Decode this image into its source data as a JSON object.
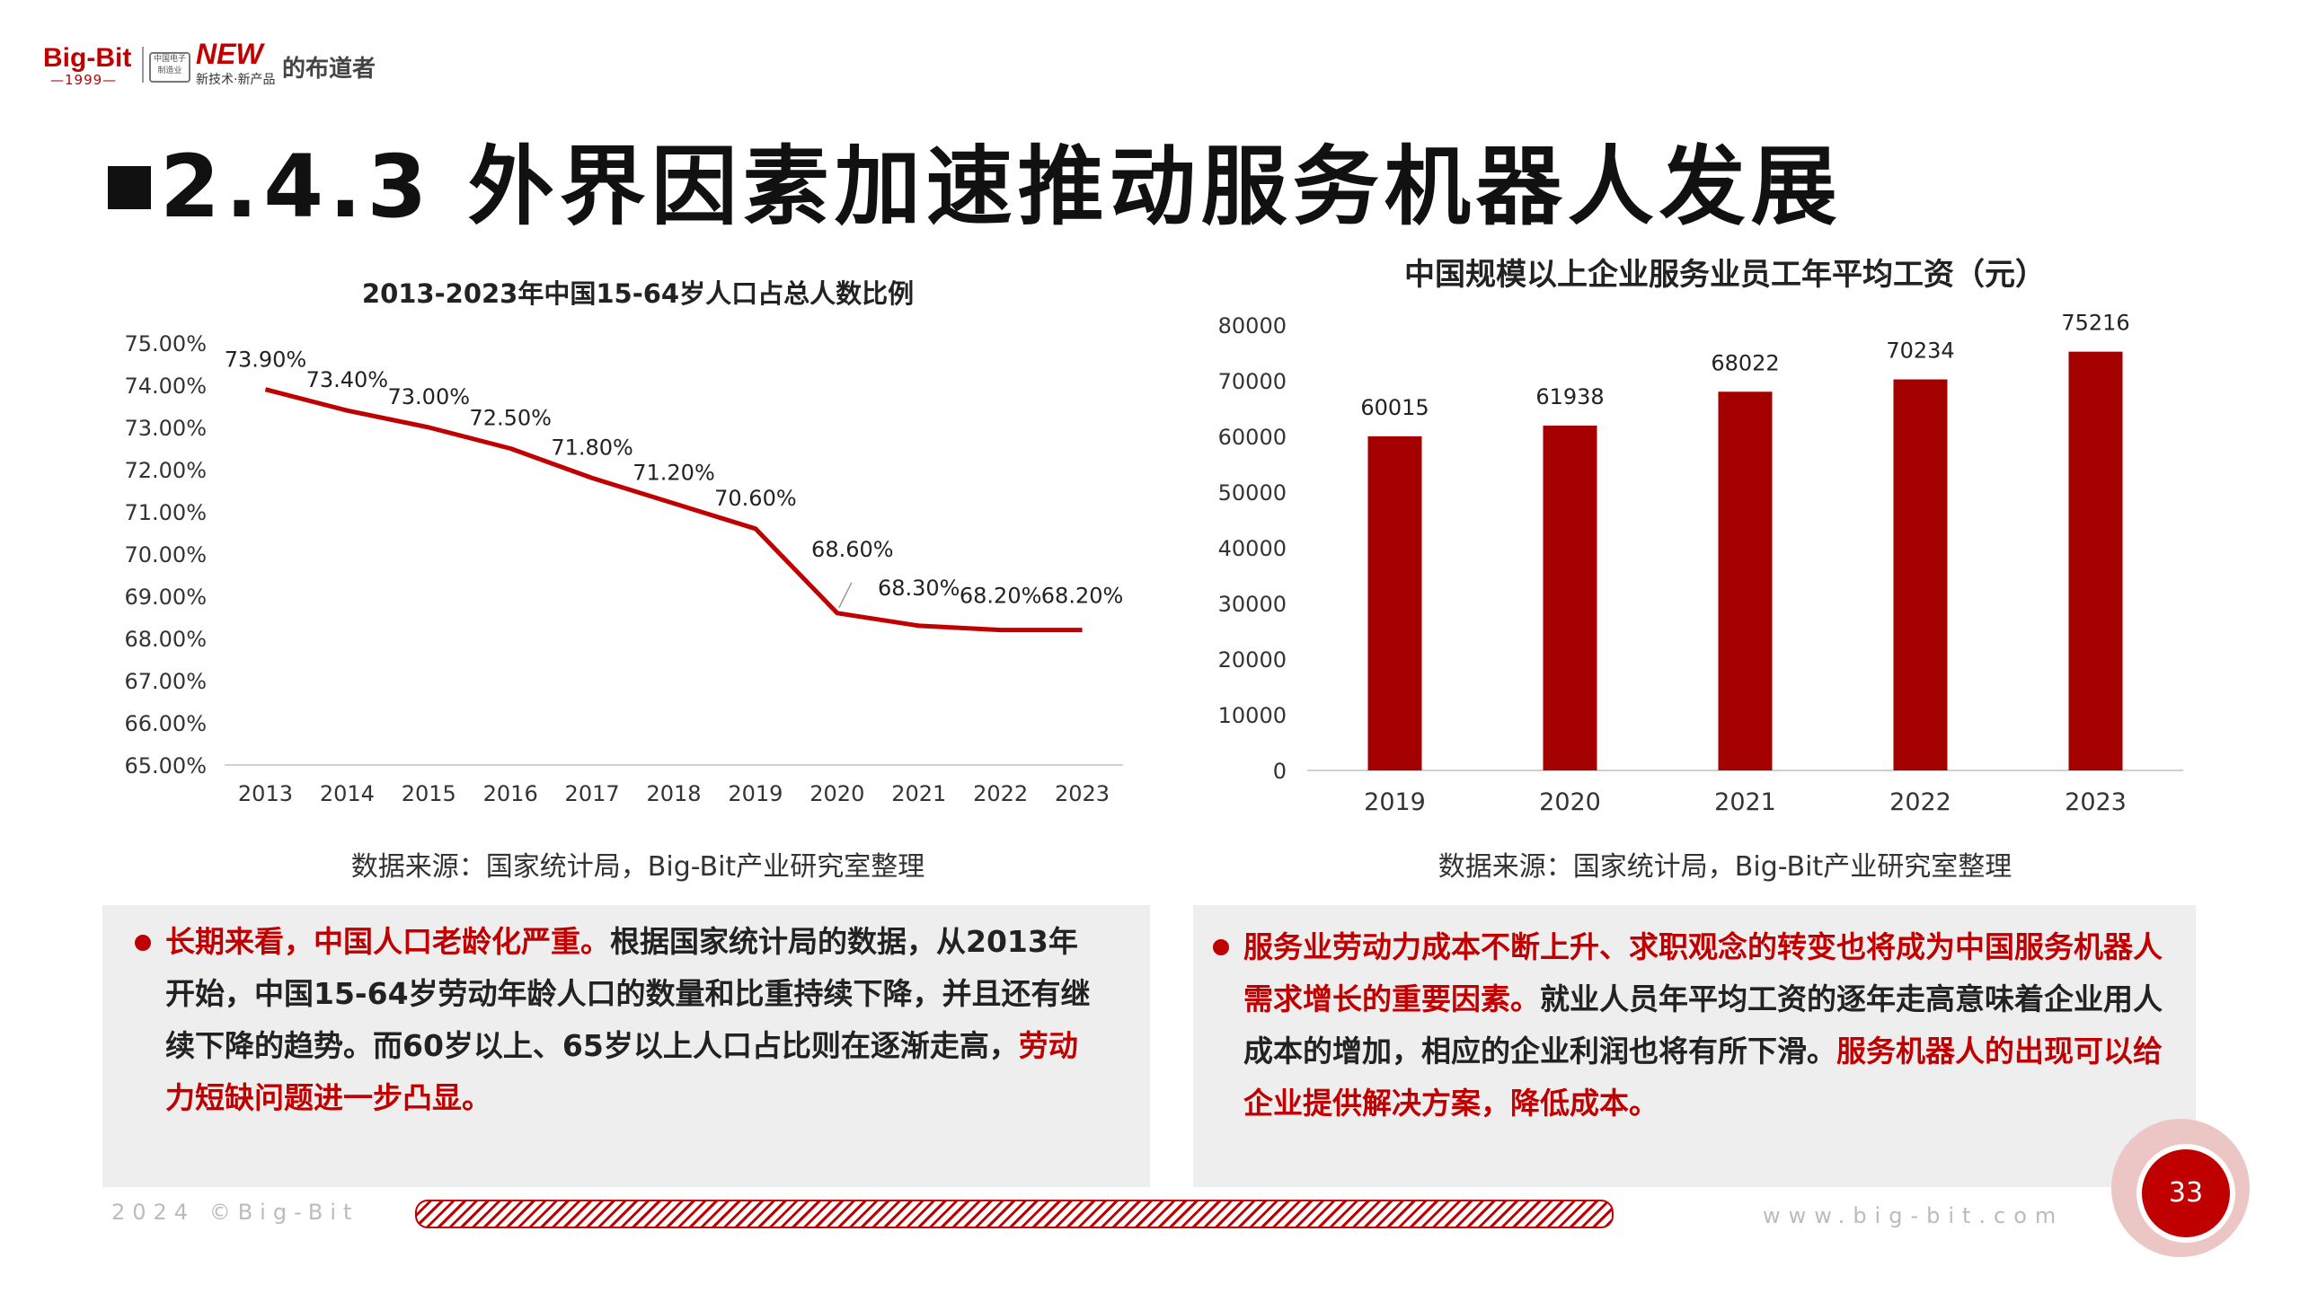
{
  "logo": {
    "brand": "Big-Bit",
    "year": "—1999—",
    "badge": "中国电子制造业",
    "new": "NEW",
    "new_sub": "新技术·新产品",
    "slogan": "的布道者"
  },
  "title": "2.4.3 外界因素加速推动服务机器人发展",
  "left_chart": {
    "title": "2013-2023年中国15-64岁人口占总人数比例",
    "source": "数据来源：国家统计局，Big-Bit产业研究室整理"
  },
  "right_chart": {
    "title": "中国规模以上企业服务业员工年平均工资（元）",
    "source": "数据来源：国家统计局，Big-Bit产业研究室整理"
  },
  "chart_data": [
    {
      "type": "line",
      "title": "2013-2023年中国15-64岁人口占总人数比例",
      "x": [
        "2013",
        "2014",
        "2015",
        "2016",
        "2017",
        "2018",
        "2019",
        "2020",
        "2021",
        "2022",
        "2023"
      ],
      "values": [
        73.9,
        73.4,
        73.0,
        72.5,
        71.8,
        71.2,
        70.6,
        68.6,
        68.3,
        68.2,
        68.2
      ],
      "value_labels": [
        "73.90%",
        "73.40%",
        "73.00%",
        "72.50%",
        "71.80%",
        "71.20%",
        "70.60%",
        "68.60%",
        "68.30%",
        "68.20%",
        "68.20%"
      ],
      "ylim": [
        65,
        75
      ],
      "yticks": [
        "65.00%",
        "66.00%",
        "67.00%",
        "68.00%",
        "69.00%",
        "70.00%",
        "71.00%",
        "72.00%",
        "73.00%",
        "74.00%",
        "75.00%"
      ],
      "color": "#c00000",
      "xlabel": "",
      "ylabel": ""
    },
    {
      "type": "bar",
      "title": "中国规模以上企业服务业员工年平均工资（元）",
      "categories": [
        "2019",
        "2020",
        "2021",
        "2022",
        "2023"
      ],
      "values": [
        60015,
        61938,
        68022,
        70234,
        75216
      ],
      "ylim": [
        0,
        80000
      ],
      "yticks": [
        "0",
        "10000",
        "20000",
        "30000",
        "40000",
        "50000",
        "60000",
        "70000",
        "80000"
      ],
      "color": "#a50000",
      "xlabel": "",
      "ylabel": ""
    }
  ],
  "left_box": {
    "line1_red": "长期来看，中国人口老龄化严重。",
    "line1_black": "根据国家统计局的数据，从2013年",
    "line2": "开始，中国15-64岁劳动年龄人口的数量和比重持续下降，并且还有继",
    "line3_black": "续下降的趋势。而60岁以上、65岁以上人口占比则在逐渐走高，",
    "line3_red": "劳动",
    "line4_red": "力短缺问题进一步凸显。"
  },
  "right_box": {
    "line1_red": "服务业劳动力成本不断上升、求职观念的转变也将成为中国服务机器人",
    "line2_red": "需求增长的重要因素。",
    "line2_black": "就业人员年平均工资的逐年走高意味着企业用人",
    "line3_black": "成本的增加，相应的企业利润也将有所下滑。",
    "line3_red": "服务机器人的出现可以给",
    "line4_red": "企业提供解决方案，降低成本。"
  },
  "footer": {
    "left": "2024 ©Big-Bit",
    "right": "www.big-bit.com",
    "page": "33"
  }
}
